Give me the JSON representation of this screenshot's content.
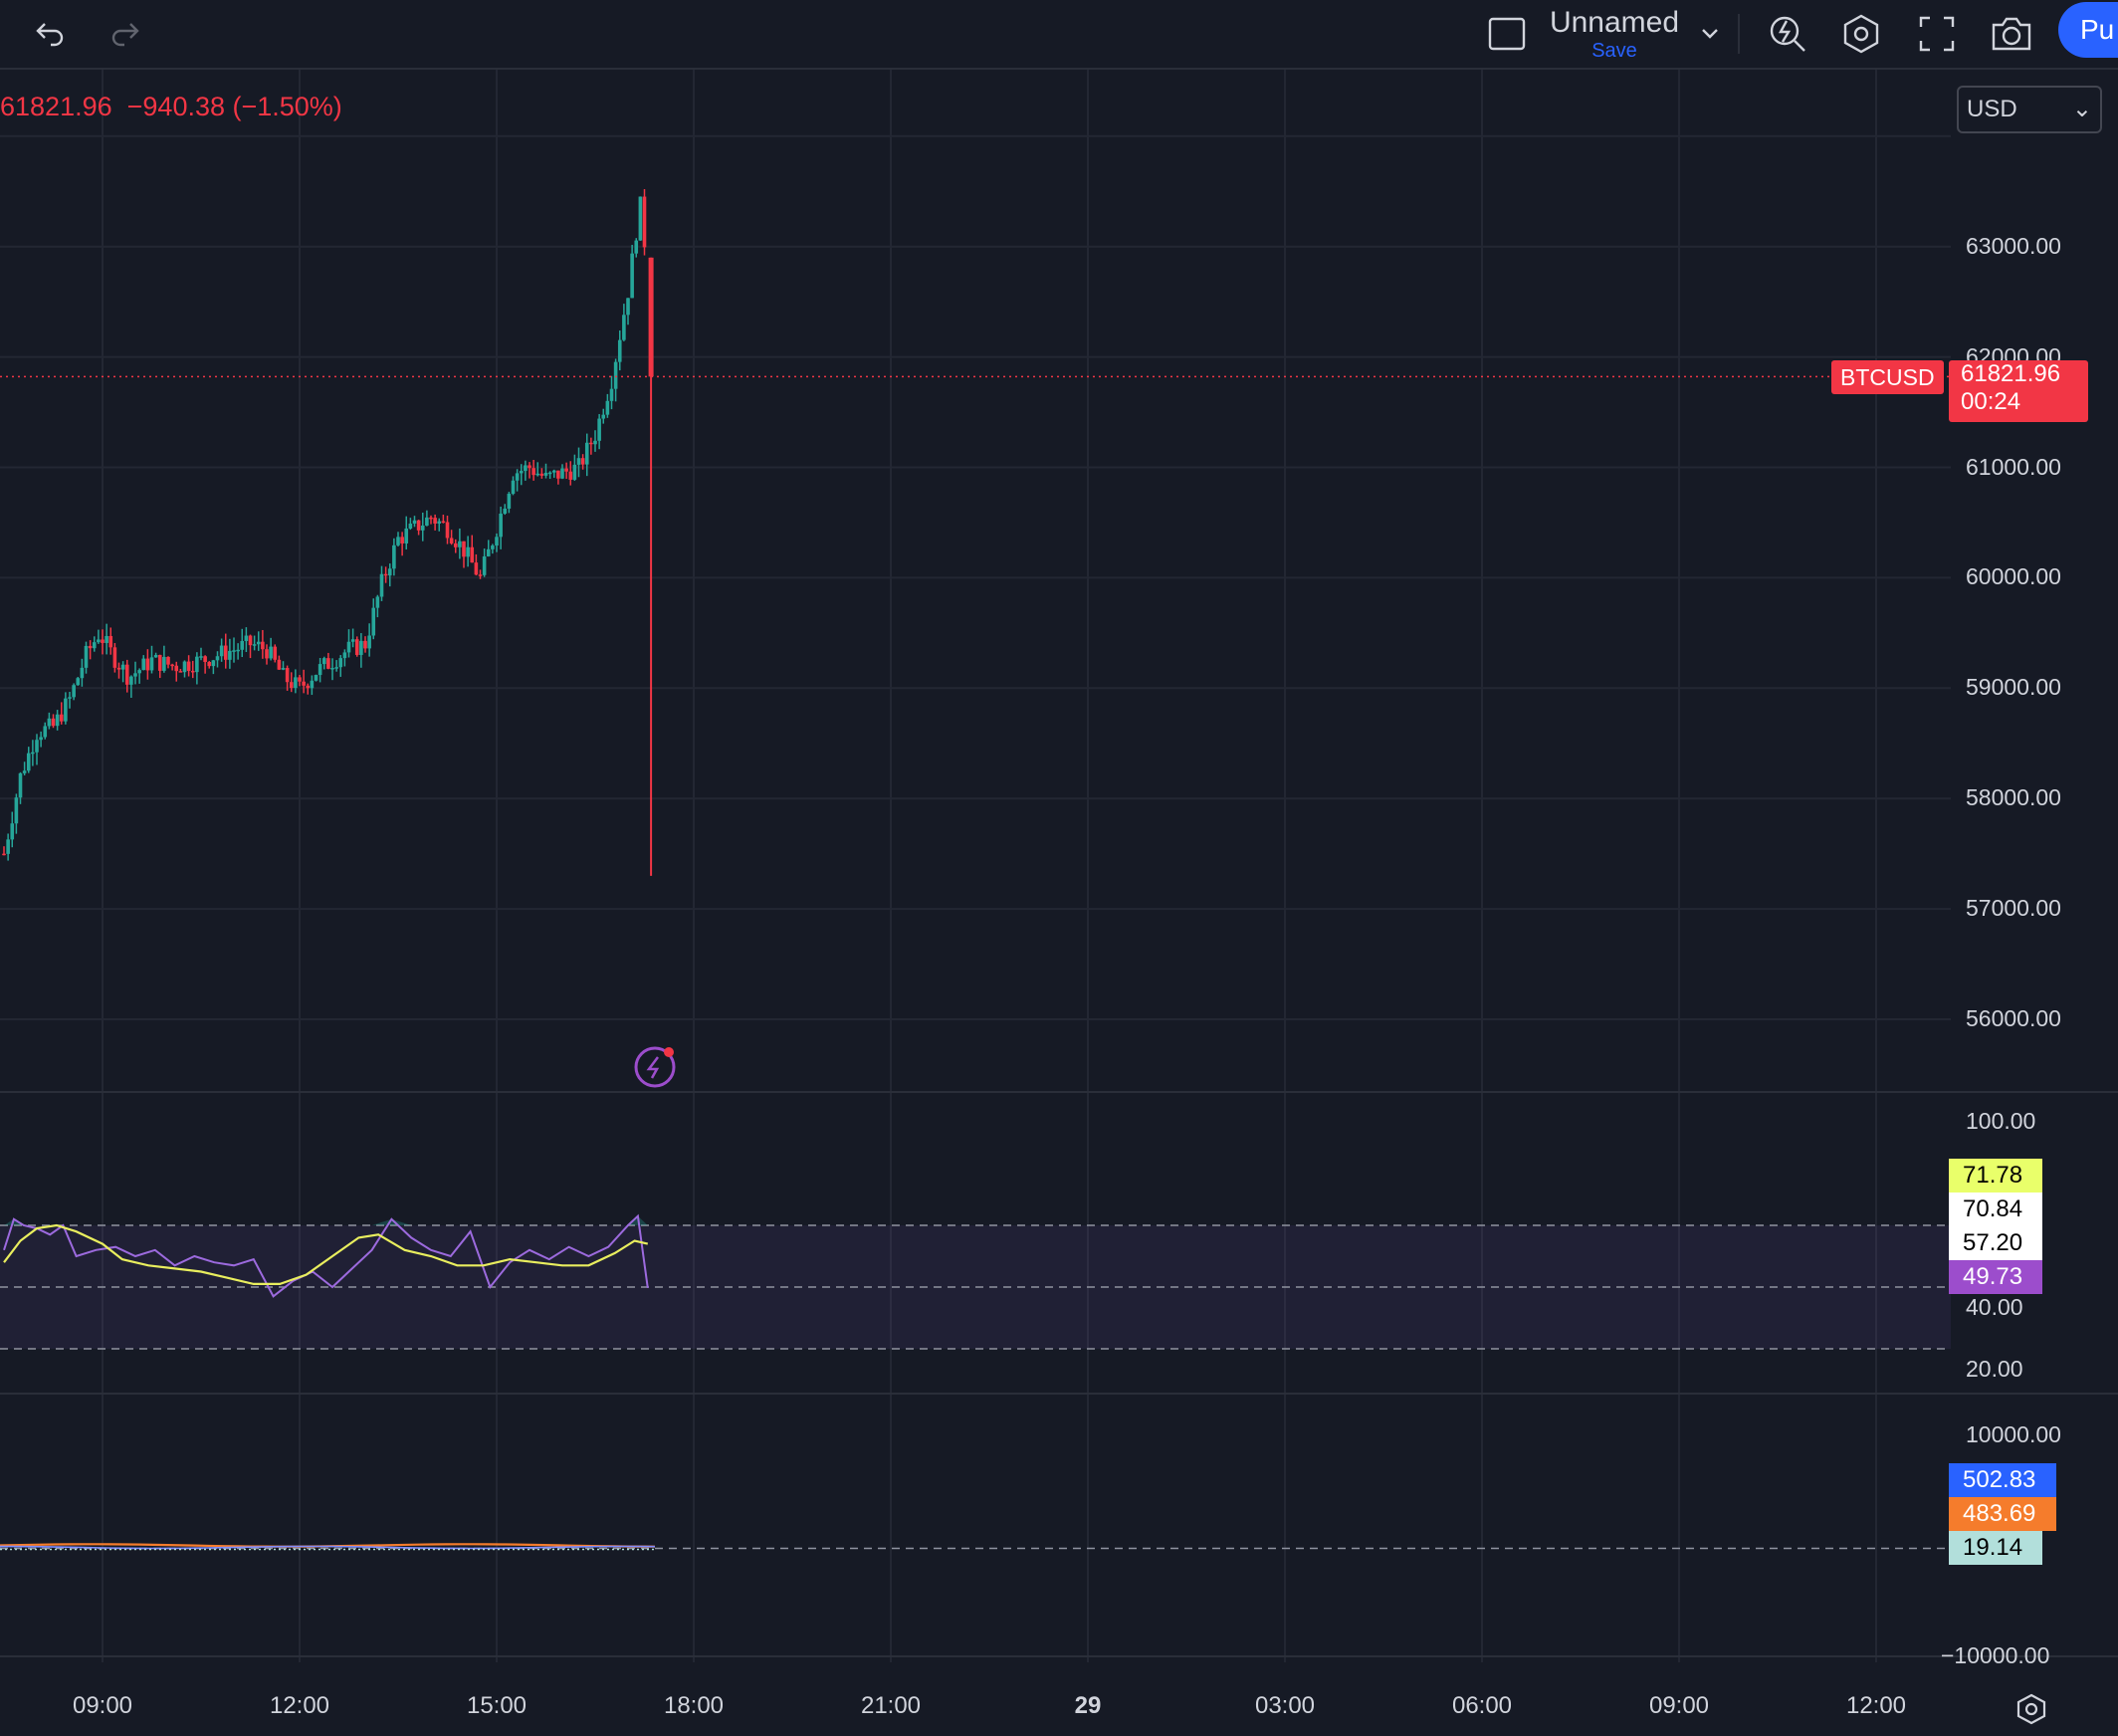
{
  "toolbar": {
    "undo_icon": "undo-icon",
    "redo_icon": "redo-icon",
    "layout_icon": "layout-square-icon",
    "layout_name": "Unnamed",
    "save_label": "Save",
    "dropdown_icon": "chevron-down-icon",
    "quick_search_icon": "lightning-search-icon",
    "settings_icon": "gear-hexagon-icon",
    "fullscreen_icon": "fullscreen-icon",
    "snapshot_icon": "camera-icon",
    "publish_label": "Pu"
  },
  "legend": {
    "price": "61821.96",
    "change": "−940.38 (−1.50%)"
  },
  "currency_select": {
    "value": "USD"
  },
  "colors": {
    "background": "#161a25",
    "up": "#26a69a",
    "down": "#f23645",
    "rsi": "#9c6ade",
    "rsi_ma": "#e9ee5e",
    "volume_blue": "#2962ff",
    "volume_orange": "#f57c2c",
    "volume_teal": "#b2dfdb"
  },
  "current_price": {
    "symbol": "BTCUSD",
    "price": "61821.96",
    "countdown": "00:24"
  },
  "chart_data": [
    {
      "type": "candlestick",
      "symbol": "BTCUSD",
      "price_axis_labels": [
        "63000.00",
        "62000.00",
        "61000.00",
        "60000.00",
        "59000.00",
        "58000.00",
        "57000.00",
        "56000.00"
      ],
      "ylim": [
        55300,
        64100
      ],
      "time_axis_labels": [
        "09:00",
        "12:00",
        "15:00",
        "18:00",
        "21:00",
        "29",
        "03:00",
        "06:00",
        "09:00",
        "12:00"
      ],
      "close_path": [
        [
          7.5,
          57500
        ],
        [
          7.75,
          58200
        ],
        [
          8.0,
          58600
        ],
        [
          8.25,
          58650
        ],
        [
          8.5,
          58900
        ],
        [
          8.75,
          59300
        ],
        [
          8.95,
          59500
        ],
        [
          9.15,
          59300
        ],
        [
          9.4,
          59100
        ],
        [
          9.75,
          59250
        ],
        [
          10.1,
          59200
        ],
        [
          10.5,
          59250
        ],
        [
          11.0,
          59350
        ],
        [
          11.25,
          59400
        ],
        [
          11.5,
          59350
        ],
        [
          11.75,
          59100
        ],
        [
          12.0,
          59000
        ],
        [
          12.25,
          59150
        ],
        [
          12.5,
          59250
        ],
        [
          12.75,
          59350
        ],
        [
          13.0,
          59400
        ],
        [
          13.25,
          59950
        ],
        [
          13.5,
          60350
        ],
        [
          13.75,
          60450
        ],
        [
          14.0,
          60550
        ],
        [
          14.25,
          60450
        ],
        [
          14.5,
          60250
        ],
        [
          14.75,
          60000
        ],
        [
          15.0,
          60450
        ],
        [
          15.25,
          60950
        ],
        [
          15.5,
          61000
        ],
        [
          15.75,
          60900
        ],
        [
          16.0,
          60950
        ],
        [
          16.25,
          61000
        ],
        [
          16.5,
          61300
        ],
        [
          16.75,
          61800
        ],
        [
          17.0,
          62600
        ],
        [
          17.15,
          63250
        ],
        [
          17.2,
          63400
        ],
        [
          17.27,
          62900
        ]
      ],
      "final_candle": {
        "open": 62900,
        "high": 62900,
        "low": 57300,
        "close": 61821.96
      },
      "last_price": 61821.96,
      "change": -940.38,
      "change_pct": -1.5
    },
    {
      "type": "line",
      "name": "RSI",
      "axis_labels": [
        "100.00",
        "40.00",
        "20.00"
      ],
      "ylim": [
        16,
        104
      ],
      "bands": [
        30,
        50,
        70
      ],
      "value_badges": [
        "71.78",
        "70.84",
        "57.20",
        "49.73"
      ],
      "rsi": [
        [
          7.5,
          62
        ],
        [
          7.65,
          72
        ],
        [
          7.8,
          70
        ],
        [
          8.0,
          69
        ],
        [
          8.2,
          67
        ],
        [
          8.4,
          70
        ],
        [
          8.6,
          60
        ],
        [
          8.9,
          62
        ],
        [
          9.2,
          63
        ],
        [
          9.5,
          60
        ],
        [
          9.8,
          62
        ],
        [
          10.1,
          57
        ],
        [
          10.4,
          60
        ],
        [
          10.7,
          58
        ],
        [
          11.0,
          57
        ],
        [
          11.3,
          59
        ],
        [
          11.6,
          47
        ],
        [
          11.9,
          52
        ],
        [
          12.2,
          55
        ],
        [
          12.5,
          50
        ],
        [
          12.8,
          56
        ],
        [
          13.1,
          62
        ],
        [
          13.4,
          72
        ],
        [
          13.7,
          66
        ],
        [
          14.0,
          62
        ],
        [
          14.3,
          60
        ],
        [
          14.6,
          68
        ],
        [
          14.9,
          50
        ],
        [
          15.2,
          58
        ],
        [
          15.5,
          62
        ],
        [
          15.8,
          59
        ],
        [
          16.1,
          63
        ],
        [
          16.4,
          60
        ],
        [
          16.7,
          63
        ],
        [
          17.0,
          70
        ],
        [
          17.15,
          73
        ],
        [
          17.3,
          49.73
        ]
      ],
      "rsi_ma": [
        [
          7.5,
          58
        ],
        [
          7.75,
          65
        ],
        [
          8.0,
          69
        ],
        [
          8.3,
          70
        ],
        [
          8.6,
          68
        ],
        [
          9.0,
          64
        ],
        [
          9.3,
          59
        ],
        [
          9.7,
          57
        ],
        [
          10.1,
          56
        ],
        [
          10.5,
          55
        ],
        [
          10.9,
          53
        ],
        [
          11.3,
          51
        ],
        [
          11.7,
          51
        ],
        [
          12.1,
          54
        ],
        [
          12.5,
          60
        ],
        [
          12.9,
          66
        ],
        [
          13.2,
          67
        ],
        [
          13.6,
          62
        ],
        [
          14.0,
          60
        ],
        [
          14.4,
          57
        ],
        [
          14.8,
          57
        ],
        [
          15.2,
          59
        ],
        [
          15.6,
          58
        ],
        [
          16.0,
          57
        ],
        [
          16.4,
          57
        ],
        [
          16.8,
          61
        ],
        [
          17.1,
          65
        ],
        [
          17.3,
          64
        ]
      ]
    },
    {
      "type": "line",
      "name": "Volume",
      "axis_labels": [
        "10000.00",
        "−10000.00"
      ],
      "ylim": [
        -10000,
        10000
      ],
      "value_badges": [
        "502.83",
        "483.69",
        "19.14"
      ],
      "series": [
        {
          "values": [
            502.83
          ]
        },
        {
          "values": [
            483.69
          ]
        },
        {
          "values": [
            19.14
          ]
        }
      ]
    }
  ],
  "footer": {
    "settings_icon": "gear-hexagon-icon"
  },
  "indicator_marker_icon": "lightning-alert-icon"
}
